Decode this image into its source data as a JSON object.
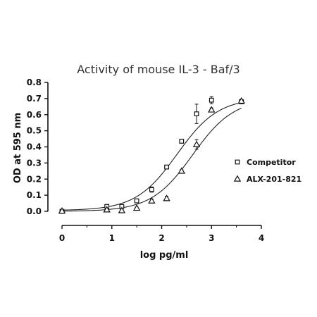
{
  "chart_data": {
    "type": "scatter",
    "title": "Activity of mouse IL-3 - Baf/3",
    "xlabel": "log pg/ml",
    "ylabel": "OD at 595 nm",
    "xlim": [
      0,
      4
    ],
    "ylim": [
      0,
      0.8
    ],
    "xticks": [
      "0",
      "1",
      "2",
      "3",
      "4"
    ],
    "yticks": [
      "0.0",
      "0.1",
      "0.2",
      "0.3",
      "0.4",
      "0.5",
      "0.6",
      "0.7",
      "0.8"
    ],
    "grid": false,
    "legend_position": "right",
    "series": [
      {
        "name": "Competitor",
        "marker": "square",
        "points": [
          {
            "x": 0.0,
            "y": 0.0,
            "err": 0.006
          },
          {
            "x": 0.9,
            "y": 0.03,
            "err": 0.012
          },
          {
            "x": 1.2,
            "y": 0.03,
            "err": 0.008
          },
          {
            "x": 1.5,
            "y": 0.065,
            "err": 0.012
          },
          {
            "x": 1.8,
            "y": 0.135,
            "err": 0.016
          },
          {
            "x": 2.1,
            "y": 0.275,
            "err": 0.006
          },
          {
            "x": 2.4,
            "y": 0.435,
            "err": 0.008
          },
          {
            "x": 2.7,
            "y": 0.605,
            "err": 0.06
          },
          {
            "x": 3.0,
            "y": 0.69,
            "err": 0.022
          },
          {
            "x": 3.6,
            "y": 0.68,
            "err": 0.008
          }
        ],
        "fit": {
          "bottom": 0.005,
          "top": 0.705,
          "logEC50": 2.31,
          "hill": 1.05
        }
      },
      {
        "name": "ALX-201-821",
        "marker": "triangle",
        "points": [
          {
            "x": 0.0,
            "y": 0.002,
            "err": 0.004
          },
          {
            "x": 0.9,
            "y": 0.01,
            "err": 0.008
          },
          {
            "x": 1.2,
            "y": 0.005,
            "err": 0.006
          },
          {
            "x": 1.5,
            "y": 0.02,
            "err": 0.006
          },
          {
            "x": 1.8,
            "y": 0.065,
            "err": 0.01
          },
          {
            "x": 2.1,
            "y": 0.08,
            "err": 0.014
          },
          {
            "x": 2.4,
            "y": 0.25,
            "err": 0.008
          },
          {
            "x": 2.7,
            "y": 0.415,
            "err": 0.03
          },
          {
            "x": 3.0,
            "y": 0.63,
            "err": 0.012
          },
          {
            "x": 3.6,
            "y": 0.685,
            "err": 0.008
          }
        ],
        "fit": {
          "bottom": 0.0,
          "top": 0.7,
          "logEC50": 2.62,
          "hill": 1.05
        }
      }
    ]
  }
}
